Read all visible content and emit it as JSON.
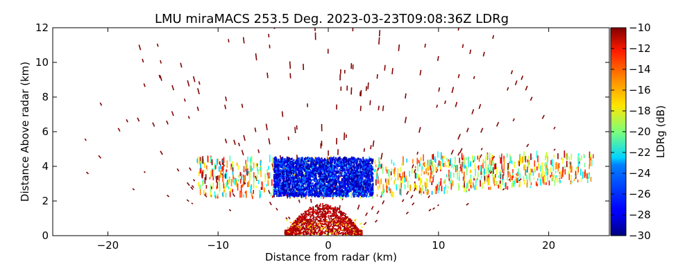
{
  "chart_data": {
    "type": "heatmap",
    "title": "LMU miraMACS 253.5 Deg. 2023-03-23T09:08:36Z  LDRg",
    "xlabel": "Distance from radar (km)",
    "ylabel": "Distance Above radar  (km)",
    "xlim": [
      -25,
      25.5
    ],
    "ylim": [
      0,
      12
    ],
    "x_ticks": [
      "−20",
      "−10",
      "0",
      "10",
      "20"
    ],
    "x_tick_values": [
      -20,
      -10,
      0,
      10,
      20
    ],
    "y_ticks": [
      "0",
      "2",
      "4",
      "6",
      "8",
      "10",
      "12"
    ],
    "y_tick_values": [
      0,
      2,
      4,
      6,
      8,
      10,
      12
    ],
    "colorbar": {
      "label": "LDRg (dB)",
      "range": [
        -30,
        -10
      ],
      "ticks": [
        "−10",
        "−12",
        "−14",
        "−16",
        "−18",
        "−20",
        "−22",
        "−24",
        "−26",
        "−28",
        "−30"
      ],
      "tick_values": [
        -10,
        -12,
        -14,
        -16,
        -18,
        -20,
        -22,
        -24,
        -26,
        -28,
        -30
      ],
      "colormap": "jet"
    },
    "regions": [
      {
        "name": "near-surface echo",
        "x_range": [
          -4,
          3
        ],
        "y_range": [
          0,
          1.8
        ],
        "ldr_range": [
          -12,
          -10
        ]
      },
      {
        "name": "cloud layer core",
        "x_range": [
          -5,
          4
        ],
        "y_range": [
          2.2,
          4.4
        ],
        "ldr_range": [
          -30,
          -26
        ]
      },
      {
        "name": "cloud layer edges",
        "x_range": [
          -12,
          24
        ],
        "y_range": [
          2.0,
          4.5
        ],
        "ldr_range": [
          -24,
          -12
        ]
      },
      {
        "name": "sparse noise speckle",
        "x_range": [
          -23,
          23
        ],
        "y_range": [
          0,
          12
        ],
        "ldr_value": -10
      }
    ]
  }
}
